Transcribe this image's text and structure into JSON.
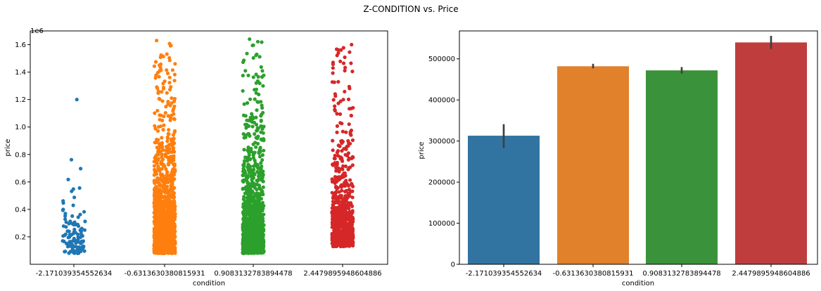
{
  "figure": {
    "suptitle": "Z-CONDITION vs. Price"
  },
  "colors": {
    "c0": "#1f77b4",
    "c1": "#ff7f0e",
    "c2": "#2ca02c",
    "c3": "#d62728",
    "bar0": "#3274a1",
    "bar1": "#e1812c",
    "bar2": "#3a923a",
    "bar3": "#c03d3e",
    "errorbar": "#404040"
  },
  "chart_data": [
    {
      "type": "scatter",
      "subtype": "stripplot",
      "xlabel": "condition",
      "ylabel": "price",
      "offset_text": "1e6",
      "categories": [
        "-2.171039354552634",
        "-0.6313630380815931",
        "0.9083132783894478",
        "2.4479895948604886"
      ],
      "yticks": [
        0.2,
        0.4,
        0.6,
        0.8,
        1.0,
        1.2,
        1.4,
        1.6
      ],
      "ytick_labels": [
        "0.2",
        "0.4",
        "0.6",
        "0.8",
        "1.0",
        "1.2",
        "1.4",
        "1.6"
      ],
      "ylim": [
        0.0,
        1.7
      ],
      "series": [
        {
          "category": "-2.171039354552634",
          "approx_points": 110,
          "min": 0.08,
          "max": 1.2,
          "median": 0.27
        },
        {
          "category": "-0.6313630380815931",
          "approx_points": 1400,
          "min": 0.08,
          "max": 1.63,
          "median": 0.42
        },
        {
          "category": "0.9083132783894478",
          "approx_points": 1200,
          "min": 0.08,
          "max": 1.64,
          "median": 0.4
        },
        {
          "category": "2.4479895948604886",
          "approx_points": 700,
          "min": 0.13,
          "max": 1.6,
          "median": 0.45
        }
      ],
      "grid": false
    },
    {
      "type": "bar",
      "xlabel": "condition",
      "ylabel": "price",
      "categories": [
        "-2.171039354552634",
        "-0.6313630380815931",
        "0.9083132783894478",
        "2.4479895948604886"
      ],
      "values": [
        313000,
        482000,
        472000,
        540000
      ],
      "error_low": [
        283000,
        477000,
        464000,
        524000
      ],
      "error_high": [
        341000,
        488000,
        480000,
        556000
      ],
      "yticks": [
        0,
        100000,
        200000,
        300000,
        400000,
        500000
      ],
      "ytick_labels": [
        "0",
        "100000",
        "200000",
        "300000",
        "400000",
        "500000"
      ],
      "ylim": [
        0,
        568000
      ],
      "grid": false
    }
  ]
}
